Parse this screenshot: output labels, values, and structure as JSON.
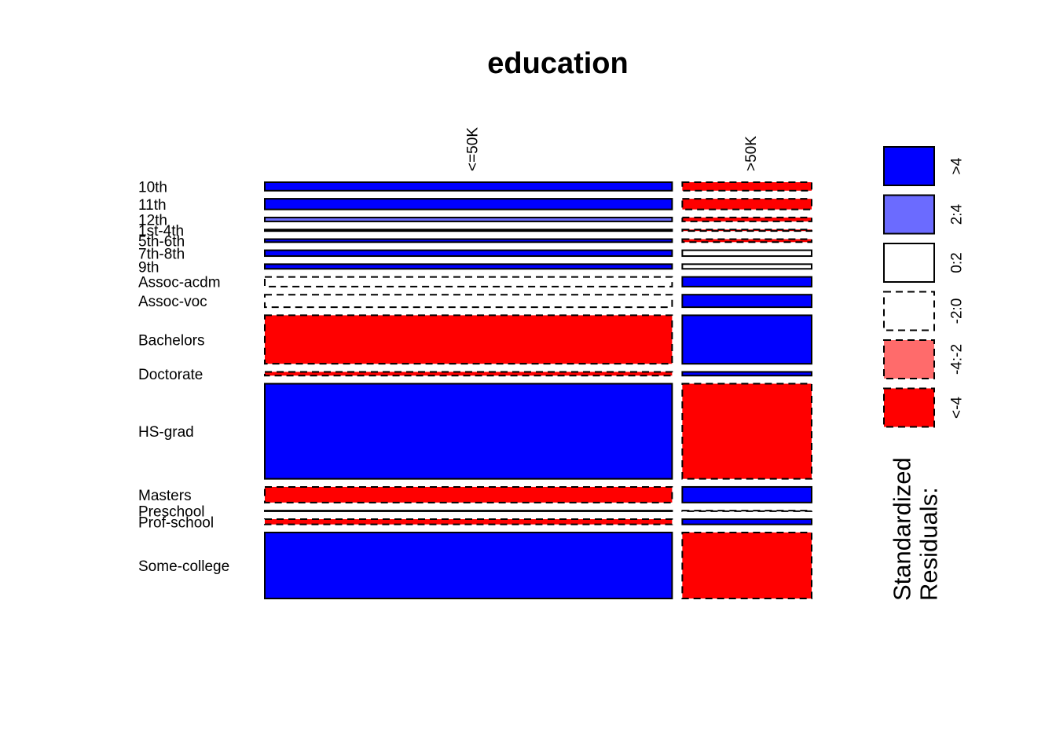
{
  "chart_data": {
    "type": "mosaic",
    "title": "education",
    "column_variable_levels": [
      "<=50K",
      ">50K"
    ],
    "column_proportions": [
      0.759,
      0.241
    ],
    "rows": [
      {
        "label": "10th",
        "proportion": 0.0287,
        "residual_class": [
          ">4",
          "<-4"
        ]
      },
      {
        "label": "11th",
        "proportion": 0.0361,
        "residual_class": [
          ">4",
          "<-4"
        ]
      },
      {
        "label": "12th",
        "proportion": 0.0133,
        "residual_class": [
          "2:4",
          "<-4"
        ]
      },
      {
        "label": "1st-4th",
        "proportion": 0.0052,
        "residual_class": [
          ">4",
          "<-4"
        ]
      },
      {
        "label": "5th-6th",
        "proportion": 0.0102,
        "residual_class": [
          ">4",
          "<-4"
        ]
      },
      {
        "label": "7th-8th",
        "proportion": 0.0198,
        "residual_class": [
          ">4",
          "0:2"
        ]
      },
      {
        "label": "9th",
        "proportion": 0.0158,
        "residual_class": [
          ">4",
          "0:2"
        ]
      },
      {
        "label": "Assoc-acdm",
        "proportion": 0.0328,
        "residual_class": [
          "-2:0",
          ">4"
        ]
      },
      {
        "label": "Assoc-voc",
        "proportion": 0.0424,
        "residual_class": [
          "-2:0",
          ">4"
        ]
      },
      {
        "label": "Bachelors",
        "proportion": 0.1645,
        "residual_class": [
          "<-4",
          ">4"
        ]
      },
      {
        "label": "Doctorate",
        "proportion": 0.0127,
        "residual_class": [
          "<-4",
          ">4"
        ]
      },
      {
        "label": "HS-grad",
        "proportion": 0.3225,
        "residual_class": [
          ">4",
          "<-4"
        ]
      },
      {
        "label": "Masters",
        "proportion": 0.0529,
        "residual_class": [
          "<-4",
          ">4"
        ]
      },
      {
        "label": "Preschool",
        "proportion": 0.0016,
        "residual_class": [
          ">4",
          "-2:0"
        ]
      },
      {
        "label": "Prof-school",
        "proportion": 0.0177,
        "residual_class": [
          "<-4",
          ">4"
        ]
      },
      {
        "label": "Some-college",
        "proportion": 0.2239,
        "residual_class": [
          ">4",
          "<-4"
        ]
      }
    ],
    "legend": {
      "title_line1": "Standardized",
      "title_line2": "Residuals:",
      "entries": [
        {
          "label": ">4",
          "fill": "#0000FF",
          "dashed": false
        },
        {
          "label": "2:4",
          "fill": "#6B6BFF",
          "dashed": false
        },
        {
          "label": "0:2",
          "fill": "#FFFFFF",
          "dashed": false
        },
        {
          "label": "-2:0",
          "fill": "#FFFFFF",
          "dashed": true
        },
        {
          "label": "-4:-2",
          "fill": "#FF6B6B",
          "dashed": true
        },
        {
          "label": "<-4",
          "fill": "#FF0000",
          "dashed": true
        }
      ]
    }
  }
}
